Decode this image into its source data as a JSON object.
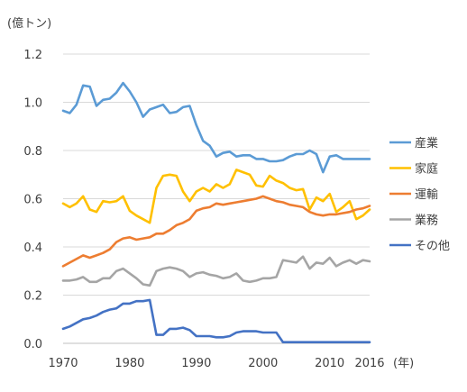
{
  "chart_data": {
    "type": "line",
    "ylabel": "(億トン)",
    "xlabel": "(年)",
    "ylim": [
      0,
      1.2
    ],
    "xlim": [
      1970,
      2016
    ],
    "yticks": [
      "0.0",
      "0.2",
      "0.4",
      "0.6",
      "0.8",
      "1.0",
      "1.2"
    ],
    "ytick_values": [
      0,
      0.2,
      0.4,
      0.6,
      0.8,
      1.0,
      1.2
    ],
    "xticks": [
      "1970",
      "1980",
      "1990",
      "2000",
      "2010",
      "2016"
    ],
    "xtick_values": [
      1970,
      1980,
      1990,
      2000,
      2010,
      2016
    ],
    "grid": "horizontal",
    "legend": "right",
    "x": [
      1970,
      1971,
      1972,
      1973,
      1974,
      1975,
      1976,
      1977,
      1978,
      1979,
      1980,
      1981,
      1982,
      1983,
      1984,
      1985,
      1986,
      1987,
      1988,
      1989,
      1990,
      1991,
      1992,
      1993,
      1994,
      1995,
      1996,
      1997,
      1998,
      1999,
      2000,
      2001,
      2002,
      2003,
      2004,
      2005,
      2006,
      2007,
      2008,
      2009,
      2010,
      2011,
      2012,
      2013,
      2014,
      2015,
      2016
    ],
    "series": [
      {
        "name": "産業",
        "color": "#5b9bd5",
        "values": [
          0.965,
          0.955,
          0.99,
          1.07,
          1.065,
          0.985,
          1.01,
          1.015,
          1.04,
          1.08,
          1.045,
          1.0,
          0.94,
          0.97,
          0.98,
          0.99,
          0.955,
          0.96,
          0.98,
          0.985,
          0.905,
          0.84,
          0.82,
          0.775,
          0.79,
          0.795,
          0.775,
          0.78,
          0.78,
          0.765,
          0.765,
          0.755,
          0.755,
          0.76,
          0.775,
          0.785,
          0.785,
          0.8,
          0.785,
          0.71,
          0.775,
          0.78,
          0.765,
          0.765,
          0.765,
          0.765,
          0.765
        ]
      },
      {
        "name": "家庭",
        "color": "#ffc000",
        "values": [
          0.58,
          0.565,
          0.58,
          0.61,
          0.555,
          0.545,
          0.59,
          0.585,
          0.59,
          0.61,
          0.55,
          0.53,
          0.515,
          0.5,
          0.645,
          0.695,
          0.7,
          0.695,
          0.63,
          0.59,
          0.63,
          0.645,
          0.63,
          0.66,
          0.645,
          0.66,
          0.72,
          0.71,
          0.7,
          0.655,
          0.65,
          0.695,
          0.675,
          0.665,
          0.645,
          0.635,
          0.64,
          0.555,
          0.605,
          0.59,
          0.62,
          0.545,
          0.565,
          0.59,
          0.515,
          0.53,
          0.555
        ]
      },
      {
        "name": "運輸",
        "color": "#ed7d31",
        "values": [
          0.32,
          0.335,
          0.35,
          0.365,
          0.355,
          0.365,
          0.375,
          0.39,
          0.42,
          0.435,
          0.44,
          0.43,
          0.435,
          0.44,
          0.455,
          0.455,
          0.47,
          0.49,
          0.5,
          0.515,
          0.55,
          0.56,
          0.565,
          0.58,
          0.575,
          0.58,
          0.585,
          0.59,
          0.595,
          0.6,
          0.61,
          0.6,
          0.59,
          0.585,
          0.575,
          0.57,
          0.565,
          0.545,
          0.535,
          0.53,
          0.535,
          0.535,
          0.54,
          0.545,
          0.555,
          0.56,
          0.57
        ]
      },
      {
        "name": "業務",
        "color": "#a5a5a5",
        "values": [
          0.26,
          0.26,
          0.265,
          0.275,
          0.255,
          0.255,
          0.27,
          0.27,
          0.3,
          0.31,
          0.29,
          0.27,
          0.245,
          0.24,
          0.3,
          0.31,
          0.315,
          0.31,
          0.3,
          0.275,
          0.29,
          0.295,
          0.285,
          0.28,
          0.27,
          0.275,
          0.29,
          0.26,
          0.255,
          0.26,
          0.27,
          0.27,
          0.275,
          0.345,
          0.34,
          0.335,
          0.36,
          0.31,
          0.335,
          0.33,
          0.355,
          0.32,
          0.335,
          0.345,
          0.33,
          0.345,
          0.34
        ]
      },
      {
        "name": "その他",
        "color": "#4472c4",
        "values": [
          0.06,
          0.07,
          0.085,
          0.1,
          0.105,
          0.115,
          0.13,
          0.14,
          0.145,
          0.165,
          0.165,
          0.175,
          0.175,
          0.18,
          0.035,
          0.035,
          0.06,
          0.06,
          0.065,
          0.055,
          0.03,
          0.03,
          0.03,
          0.025,
          0.025,
          0.03,
          0.045,
          0.05,
          0.05,
          0.05,
          0.045,
          0.045,
          0.045,
          0.005,
          0.005,
          0.005,
          0.005,
          0.005,
          0.005,
          0.005,
          0.005,
          0.005,
          0.005,
          0.005,
          0.005,
          0.005,
          0.005
        ]
      }
    ]
  }
}
